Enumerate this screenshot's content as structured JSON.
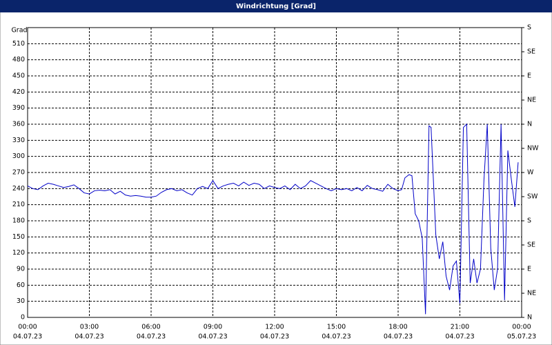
{
  "chart_data": {
    "type": "line",
    "title": "Windrichtung [Grad]",
    "y_label": "Grad",
    "xlim": [
      0,
      24
    ],
    "xticks": [
      {
        "value": 0,
        "label": "00:00"
      },
      {
        "value": 3,
        "label": "03:00"
      },
      {
        "value": 6,
        "label": "06:00"
      },
      {
        "value": 9,
        "label": "09:00"
      },
      {
        "value": 12,
        "label": "12:00"
      },
      {
        "value": 15,
        "label": "15:00"
      },
      {
        "value": 18,
        "label": "18:00"
      },
      {
        "value": 21,
        "label": "21:00"
      },
      {
        "value": 24,
        "label": "00:00"
      }
    ],
    "xtick_dates": [
      "04.07.23",
      "04.07.23",
      "04.07.23",
      "04.07.23",
      "04.07.23",
      "04.07.23",
      "04.07.23",
      "04.07.23",
      "05.07.23"
    ],
    "ylim": [
      0,
      540
    ],
    "yticks": [
      0,
      30,
      60,
      90,
      120,
      150,
      180,
      210,
      240,
      270,
      300,
      330,
      360,
      390,
      420,
      450,
      480,
      510
    ],
    "y2lim": [
      0,
      540
    ],
    "y2ticks": [
      {
        "value": 0,
        "label": "N"
      },
      {
        "value": 45,
        "label": "NE"
      },
      {
        "value": 90,
        "label": "E"
      },
      {
        "value": 135,
        "label": "SE"
      },
      {
        "value": 180,
        "label": "S"
      },
      {
        "value": 225,
        "label": "SW"
      },
      {
        "value": 270,
        "label": "W"
      },
      {
        "value": 315,
        "label": "NW"
      },
      {
        "value": 360,
        "label": "N"
      },
      {
        "value": 405,
        "label": "NE"
      },
      {
        "value": 450,
        "label": "E"
      },
      {
        "value": 495,
        "label": "SE"
      },
      {
        "value": 540,
        "label": "S"
      }
    ],
    "grid": true,
    "x": [
      0,
      0.25,
      0.5,
      0.75,
      1,
      1.25,
      1.5,
      1.75,
      2,
      2.25,
      2.5,
      2.75,
      3,
      3.25,
      3.5,
      3.75,
      4,
      4.25,
      4.5,
      4.75,
      5,
      5.25,
      5.5,
      5.75,
      6,
      6.25,
      6.5,
      6.75,
      7,
      7.25,
      7.5,
      7.75,
      8,
      8.25,
      8.5,
      8.75,
      9,
      9.25,
      9.5,
      9.75,
      10,
      10.25,
      10.5,
      10.75,
      11,
      11.25,
      11.5,
      11.75,
      12,
      12.25,
      12.5,
      12.75,
      13,
      13.25,
      13.5,
      13.75,
      14,
      14.25,
      14.5,
      14.75,
      15,
      15.25,
      15.5,
      15.75,
      16,
      16.25,
      16.5,
      16.75,
      17,
      17.25,
      17.5,
      17.75,
      18,
      18.17,
      18.33,
      18.53,
      18.67,
      18.83,
      19,
      19.17,
      19.33,
      19.5,
      19.6,
      19.83,
      20,
      20.17,
      20.33,
      20.5,
      20.67,
      20.83,
      21,
      21.17,
      21.33,
      21.5,
      21.67,
      21.83,
      22,
      22.17,
      22.33,
      22.5,
      22.67,
      22.83,
      23,
      23.17,
      23.33,
      23.5,
      23.67,
      23.83
    ],
    "series": [
      {
        "name": "Windrichtung",
        "color": "#0000c8",
        "values": [
          245,
          240,
          238,
          245,
          250,
          248,
          245,
          242,
          244,
          247,
          240,
          232,
          230,
          236,
          237,
          236,
          238,
          230,
          235,
          228,
          226,
          227,
          226,
          224,
          224,
          226,
          233,
          238,
          240,
          236,
          238,
          232,
          228,
          240,
          244,
          240,
          255,
          240,
          245,
          248,
          250,
          245,
          252,
          246,
          250,
          248,
          240,
          245,
          242,
          240,
          245,
          238,
          248,
          240,
          245,
          255,
          250,
          245,
          240,
          236,
          240,
          238,
          240,
          236,
          242,
          236,
          246,
          240,
          238,
          235,
          248,
          240,
          236,
          238,
          260,
          266,
          264,
          193,
          180,
          148,
          6,
          357,
          354,
          154,
          109,
          141,
          77,
          51,
          96,
          105,
          26,
          354,
          360,
          64,
          109,
          64,
          90,
          257,
          360,
          129,
          51,
          90,
          360,
          32,
          311,
          257,
          206,
          289
        ]
      }
    ]
  }
}
